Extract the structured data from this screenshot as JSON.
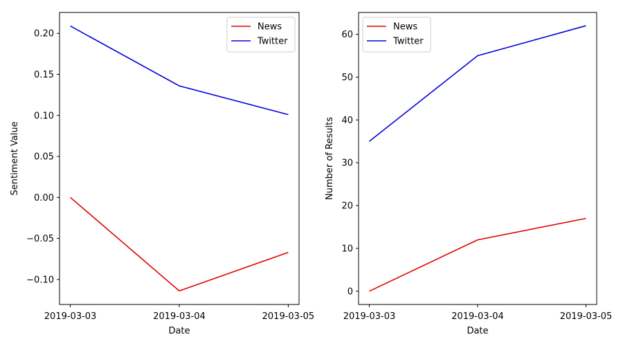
{
  "chart_data": [
    {
      "type": "line",
      "x": [
        "2019-03-03",
        "2019-03-04",
        "2019-03-05"
      ],
      "series": [
        {
          "name": "News",
          "color": "#e00000",
          "values": [
            0.0,
            -0.114,
            -0.067
          ]
        },
        {
          "name": "Twitter",
          "color": "#0000dd",
          "values": [
            0.209,
            0.136,
            0.101
          ]
        }
      ],
      "xlabel": "Date",
      "ylabel": "Sentiment Value",
      "ylim": [
        -0.1305,
        0.2255
      ],
      "yticks": [
        -0.1,
        -0.05,
        0.0,
        0.05,
        0.1,
        0.15,
        0.2
      ],
      "ytick_labels": [
        "−0.10",
        "−0.05",
        "0.00",
        "0.05",
        "0.10",
        "0.15",
        "0.20"
      ],
      "legend": "top-right",
      "grid": false
    },
    {
      "type": "line",
      "x": [
        "2019-03-03",
        "2019-03-04",
        "2019-03-05"
      ],
      "series": [
        {
          "name": "News",
          "color": "#e00000",
          "values": [
            0,
            12,
            17
          ]
        },
        {
          "name": "Twitter",
          "color": "#0000dd",
          "values": [
            35,
            55,
            62
          ]
        }
      ],
      "xlabel": "Date",
      "ylabel": "Number of Results",
      "ylim": [
        -3.1,
        65.1
      ],
      "yticks": [
        0,
        10,
        20,
        30,
        40,
        50,
        60
      ],
      "ytick_labels": [
        "0",
        "10",
        "20",
        "30",
        "40",
        "50",
        "60"
      ],
      "legend": "top-left",
      "grid": false
    }
  ]
}
